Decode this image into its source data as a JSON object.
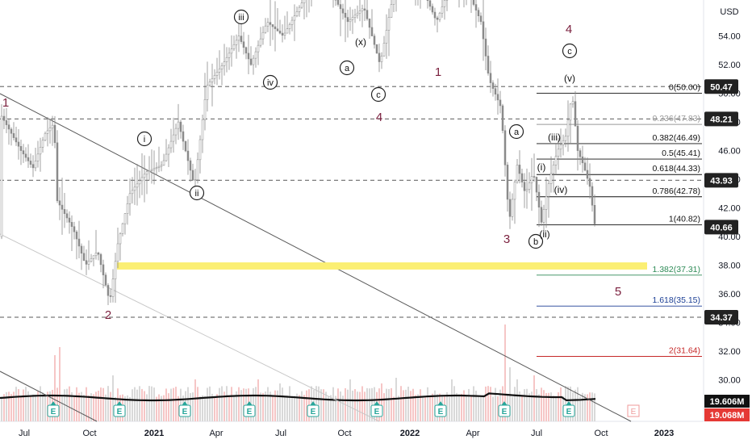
{
  "chart_data": {
    "type": "candlestick",
    "currency_label": "USD",
    "ylim": [
      28.4,
      57.4
    ],
    "y_ticks": [
      "54.00",
      "52.00",
      "50.00",
      "48.00",
      "46.00",
      "44.00",
      "42.00",
      "40.00",
      "38.00",
      "36.00",
      "34.00",
      "32.00",
      "30.00"
    ],
    "x_ticks": [
      "Jul",
      "Oct",
      "2021",
      "Apr",
      "Jul",
      "Oct",
      "2022",
      "Apr",
      "Jul",
      "Oct",
      "2023"
    ],
    "price_labels": [
      {
        "text": "50.47",
        "value": 50.47
      },
      {
        "text": "48.21",
        "value": 48.21
      },
      {
        "text": "43.93",
        "value": 43.93
      },
      {
        "text": "40.66",
        "value": 40.66
      },
      {
        "text": "34.37",
        "value": 34.37
      }
    ],
    "volume_labels": [
      {
        "text": "19.606M",
        "style": "dark"
      },
      {
        "text": "19.068M",
        "style": "red"
      }
    ],
    "fib_levels": [
      {
        "text": "0(50.00)",
        "value": 50.0,
        "color": "#111111"
      },
      {
        "text": "0.236(47.83)",
        "value": 47.83,
        "color": "#999999"
      },
      {
        "text": "0.382(46.49)",
        "value": 46.49,
        "color": "#111111"
      },
      {
        "text": "0.5(45.41)",
        "value": 45.41,
        "color": "#111111"
      },
      {
        "text": "0.618(44.33)",
        "value": 44.33,
        "color": "#111111"
      },
      {
        "text": "0.786(42.78)",
        "value": 42.78,
        "color": "#111111"
      },
      {
        "text": "1(40.82)",
        "value": 40.82,
        "color": "#111111"
      },
      {
        "text": "1.382(37.31)",
        "value": 37.31,
        "color": "#2e8b57"
      },
      {
        "text": "1.618(35.15)",
        "value": 35.15,
        "color": "#1c3f95"
      },
      {
        "text": "2(31.64)",
        "value": 31.64,
        "color": "#c62828"
      }
    ],
    "support_zone": {
      "low": 37.7,
      "high": 38.2,
      "color": "#fbef73"
    },
    "wave_labels": [
      {
        "text": "1",
        "color": "#7a1f3d",
        "circled": false
      },
      {
        "text": "2",
        "color": "#7a1f3d",
        "circled": false
      },
      {
        "text": "3",
        "color": "#7a1f3d",
        "circled": false
      },
      {
        "text": "4",
        "color": "#7a1f3d",
        "circled": false
      },
      {
        "text": "1",
        "color": "#7a1f3d",
        "circled": false
      },
      {
        "text": "4",
        "color": "#7a1f3d",
        "circled": false
      },
      {
        "text": "5",
        "color": "#7a1f3d",
        "circled": false
      },
      {
        "text": "i",
        "color": "#111111",
        "circled": true
      },
      {
        "text": "ii",
        "color": "#111111",
        "circled": true
      },
      {
        "text": "iii",
        "color": "#111111",
        "circled": true
      },
      {
        "text": "iv",
        "color": "#111111",
        "circled": true
      },
      {
        "text": "a",
        "color": "#111111",
        "circled": true
      },
      {
        "text": "(x)",
        "color": "#111111",
        "circled": false
      },
      {
        "text": "c",
        "color": "#111111",
        "circled": true
      },
      {
        "text": "a",
        "color": "#111111",
        "circled": true
      },
      {
        "text": "b",
        "color": "#111111",
        "circled": true
      },
      {
        "text": "c",
        "color": "#111111",
        "circled": true
      },
      {
        "text": "(i)",
        "color": "#111111",
        "circled": false
      },
      {
        "text": "(ii)",
        "color": "#111111",
        "circled": false
      },
      {
        "text": "(iii)",
        "color": "#111111",
        "circled": false
      },
      {
        "text": "(iv)",
        "color": "#111111",
        "circled": false
      },
      {
        "text": "(v)",
        "color": "#111111",
        "circled": false
      }
    ],
    "earnings_markers": [
      "E",
      "E",
      "E",
      "E",
      "E",
      "E",
      "E",
      "E",
      "E",
      "E",
      "E"
    ],
    "grid": false
  },
  "colors": {
    "candle": "#8c8c8c",
    "wave_primary": "#7a1f3d",
    "support_zone": "#fbef73",
    "earnings_marker": "#26a69a"
  }
}
